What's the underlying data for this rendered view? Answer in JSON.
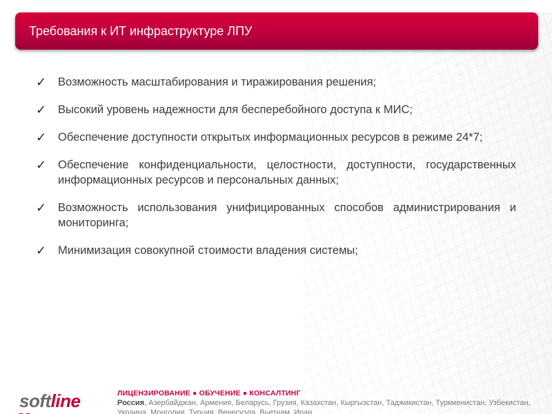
{
  "colors": {
    "accent": "#c3003f",
    "title_gradient_top": "#d5003a",
    "title_gradient_bottom": "#9c003a",
    "text": "#3b3b3b",
    "background": "#ffffff",
    "footer_text": "#7a7a7a"
  },
  "title": "Требования к ИТ инфраструктуре ЛПУ",
  "bullets": {
    "marker": "✓",
    "items": [
      "Возможность масштабирования и тиражирования решения;",
      "Высокий уровень надежности для бесперебойного доступа к МИС;",
      "Обеспечение доступности открытых информационных ресурсов в режиме 24*7;",
      "Обеспечение конфиденциальности, целостности, доступности, государственных информационных ресурсов и персональных данных;",
      "Возможность использования унифицированных способов администрирования и мониторинга;",
      "Минимизация совокупной стоимости владения системы;"
    ]
  },
  "footer": {
    "logo_prefix": "soft",
    "logo_suffix": "line",
    "services": "ЛИЦЕНЗИРОВАНИЕ ● ОБУЧЕНИЕ ● КОНСАЛТИНГ",
    "countries_bold": "Россия",
    "countries_rest": ", Азербайджан, Армения, Беларусь, Грузия, Казахстан, Кыргызстан, Таджикистан, Туркменистан, Узбекистан, Украина, Монголия, Турция, Венесуэла, Вьетнам, Иран"
  }
}
